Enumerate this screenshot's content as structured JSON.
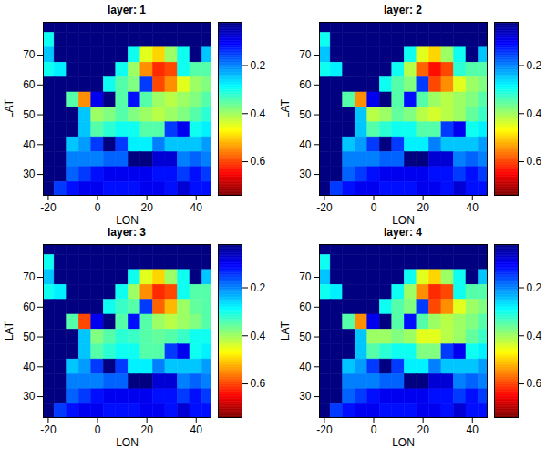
{
  "chart_data": [
    {
      "type": "heatmap",
      "title": "layer: 1",
      "x_label": "LON",
      "y_label": "LAT",
      "xlim": [
        -22,
        46
      ],
      "ylim": [
        23,
        81
      ],
      "xticks": [
        -20,
        0,
        20,
        40
      ],
      "yticks": [
        30,
        40,
        50,
        60,
        70
      ],
      "x": [
        -20,
        -15,
        -10,
        -5,
        0,
        5,
        10,
        15,
        20,
        25,
        30,
        35,
        40,
        45
      ],
      "y": [
        80,
        75,
        70,
        65,
        60,
        55,
        50,
        45,
        40,
        35,
        30,
        25
      ],
      "cells": [
        [
          0.02,
          0.02,
          0.02,
          0.02,
          0.02,
          0.02,
          0.02,
          0.02,
          0.02,
          0.02,
          0.02,
          0.02,
          0.02,
          0.02
        ],
        [
          0.3,
          0.02,
          0.02,
          0.02,
          0.02,
          0.02,
          0.02,
          0.02,
          0.02,
          0.02,
          0.02,
          0.02,
          0.02,
          0.02
        ],
        [
          0.25,
          0.02,
          0.02,
          0.02,
          0.02,
          0.02,
          0.02,
          0.3,
          0.45,
          0.5,
          0.4,
          0.3,
          0.02,
          0.25
        ],
        [
          0.3,
          0.28,
          0.02,
          0.02,
          0.02,
          0.02,
          0.3,
          0.4,
          0.55,
          0.62,
          0.6,
          0.3,
          0.35,
          0.35
        ],
        [
          0.02,
          0.02,
          0.02,
          0.02,
          0.02,
          0.3,
          0.35,
          0.38,
          0.15,
          0.6,
          0.55,
          0.45,
          0.4,
          0.38
        ],
        [
          0.02,
          0.02,
          0.35,
          0.55,
          0.1,
          0.02,
          0.35,
          0.12,
          0.35,
          0.4,
          0.42,
          0.4,
          0.38,
          0.35
        ],
        [
          0.02,
          0.02,
          0.02,
          0.25,
          0.4,
          0.38,
          0.35,
          0.38,
          0.4,
          0.42,
          0.4,
          0.38,
          0.35,
          0.32
        ],
        [
          0.02,
          0.02,
          0.02,
          0.25,
          0.35,
          0.32,
          0.3,
          0.3,
          0.35,
          0.35,
          0.15,
          0.1,
          0.3,
          0.28
        ],
        [
          0.02,
          0.02,
          0.25,
          0.22,
          0.15,
          0.02,
          0.15,
          0.28,
          0.28,
          0.2,
          0.25,
          0.25,
          0.25,
          0.22
        ],
        [
          0.02,
          0.02,
          0.2,
          0.2,
          0.2,
          0.18,
          0.18,
          0.02,
          0.02,
          0.08,
          0.08,
          0.2,
          0.18,
          0.2
        ],
        [
          0.02,
          0.02,
          0.18,
          0.15,
          0.12,
          0.1,
          0.1,
          0.1,
          0.1,
          0.12,
          0.12,
          0.15,
          0.12,
          0.15
        ],
        [
          0.02,
          0.15,
          0.12,
          0.1,
          0.1,
          0.12,
          0.12,
          0.12,
          0.1,
          0.1,
          0.12,
          0.08,
          0.12,
          0.12
        ]
      ],
      "colorbar_range": [
        0.02,
        0.74
      ],
      "colorbar_ticks": [
        0.2,
        0.4,
        0.6
      ]
    },
    {
      "type": "heatmap",
      "title": "layer: 2",
      "x_label": "LON",
      "y_label": "LAT",
      "xlim": [
        -22,
        46
      ],
      "ylim": [
        23,
        81
      ],
      "xticks": [
        -20,
        0,
        20,
        40
      ],
      "yticks": [
        30,
        40,
        50,
        60,
        70
      ],
      "x": [
        -20,
        -15,
        -10,
        -5,
        0,
        5,
        10,
        15,
        20,
        25,
        30,
        35,
        40,
        45
      ],
      "y": [
        80,
        75,
        70,
        65,
        60,
        55,
        50,
        45,
        40,
        35,
        30,
        25
      ],
      "cells": [
        [
          0.02,
          0.02,
          0.02,
          0.02,
          0.02,
          0.02,
          0.02,
          0.02,
          0.02,
          0.02,
          0.02,
          0.02,
          0.02,
          0.02
        ],
        [
          0.3,
          0.02,
          0.02,
          0.02,
          0.02,
          0.02,
          0.02,
          0.02,
          0.02,
          0.02,
          0.02,
          0.02,
          0.02,
          0.02
        ],
        [
          0.25,
          0.02,
          0.02,
          0.02,
          0.02,
          0.02,
          0.02,
          0.3,
          0.45,
          0.5,
          0.4,
          0.3,
          0.02,
          0.25
        ],
        [
          0.3,
          0.28,
          0.02,
          0.02,
          0.02,
          0.02,
          0.3,
          0.42,
          0.58,
          0.64,
          0.6,
          0.32,
          0.35,
          0.35
        ],
        [
          0.02,
          0.02,
          0.02,
          0.02,
          0.02,
          0.3,
          0.35,
          0.38,
          0.15,
          0.6,
          0.55,
          0.45,
          0.4,
          0.38
        ],
        [
          0.02,
          0.02,
          0.35,
          0.55,
          0.1,
          0.02,
          0.35,
          0.12,
          0.35,
          0.4,
          0.42,
          0.4,
          0.38,
          0.35
        ],
        [
          0.02,
          0.02,
          0.02,
          0.25,
          0.42,
          0.4,
          0.36,
          0.38,
          0.42,
          0.44,
          0.42,
          0.4,
          0.36,
          0.33
        ],
        [
          0.02,
          0.02,
          0.02,
          0.25,
          0.35,
          0.32,
          0.3,
          0.3,
          0.35,
          0.35,
          0.15,
          0.1,
          0.3,
          0.28
        ],
        [
          0.02,
          0.02,
          0.25,
          0.22,
          0.15,
          0.02,
          0.15,
          0.28,
          0.28,
          0.2,
          0.25,
          0.25,
          0.25,
          0.22
        ],
        [
          0.02,
          0.02,
          0.2,
          0.2,
          0.2,
          0.18,
          0.18,
          0.02,
          0.02,
          0.08,
          0.08,
          0.2,
          0.18,
          0.2
        ],
        [
          0.02,
          0.02,
          0.18,
          0.15,
          0.12,
          0.1,
          0.1,
          0.1,
          0.1,
          0.12,
          0.12,
          0.15,
          0.12,
          0.15
        ],
        [
          0.02,
          0.15,
          0.12,
          0.1,
          0.1,
          0.12,
          0.12,
          0.12,
          0.1,
          0.1,
          0.12,
          0.08,
          0.12,
          0.12
        ]
      ],
      "colorbar_range": [
        0.02,
        0.74
      ],
      "colorbar_ticks": [
        0.2,
        0.4,
        0.6
      ]
    },
    {
      "type": "heatmap",
      "title": "layer: 3",
      "x_label": "LON",
      "y_label": "LAT",
      "xlim": [
        -22,
        46
      ],
      "ylim": [
        23,
        81
      ],
      "xticks": [
        -20,
        0,
        20,
        40
      ],
      "yticks": [
        30,
        40,
        50,
        60,
        70
      ],
      "x": [
        -20,
        -15,
        -10,
        -5,
        0,
        5,
        10,
        15,
        20,
        25,
        30,
        35,
        40,
        45
      ],
      "y": [
        80,
        75,
        70,
        65,
        60,
        55,
        50,
        45,
        40,
        35,
        30,
        25
      ],
      "cells": [
        [
          0.02,
          0.02,
          0.02,
          0.02,
          0.02,
          0.02,
          0.02,
          0.02,
          0.02,
          0.02,
          0.02,
          0.02,
          0.02,
          0.02
        ],
        [
          0.3,
          0.02,
          0.02,
          0.02,
          0.02,
          0.02,
          0.02,
          0.02,
          0.02,
          0.02,
          0.02,
          0.02,
          0.02,
          0.02
        ],
        [
          0.25,
          0.02,
          0.02,
          0.02,
          0.02,
          0.02,
          0.02,
          0.3,
          0.45,
          0.5,
          0.4,
          0.3,
          0.02,
          0.25
        ],
        [
          0.3,
          0.28,
          0.02,
          0.02,
          0.02,
          0.02,
          0.3,
          0.4,
          0.55,
          0.62,
          0.6,
          0.3,
          0.35,
          0.35
        ],
        [
          0.02,
          0.02,
          0.02,
          0.02,
          0.02,
          0.3,
          0.33,
          0.35,
          0.15,
          0.58,
          0.52,
          0.4,
          0.36,
          0.35
        ],
        [
          0.02,
          0.02,
          0.35,
          0.6,
          0.1,
          0.02,
          0.35,
          0.12,
          0.35,
          0.4,
          0.42,
          0.4,
          0.38,
          0.35
        ],
        [
          0.02,
          0.02,
          0.02,
          0.25,
          0.38,
          0.35,
          0.32,
          0.33,
          0.35,
          0.36,
          0.35,
          0.33,
          0.3,
          0.3
        ],
        [
          0.02,
          0.02,
          0.02,
          0.25,
          0.35,
          0.32,
          0.3,
          0.3,
          0.35,
          0.35,
          0.15,
          0.1,
          0.3,
          0.28
        ],
        [
          0.02,
          0.02,
          0.25,
          0.22,
          0.15,
          0.02,
          0.15,
          0.28,
          0.28,
          0.2,
          0.25,
          0.25,
          0.25,
          0.22
        ],
        [
          0.02,
          0.02,
          0.2,
          0.2,
          0.2,
          0.18,
          0.18,
          0.02,
          0.02,
          0.08,
          0.08,
          0.2,
          0.18,
          0.2
        ],
        [
          0.02,
          0.02,
          0.18,
          0.15,
          0.12,
          0.1,
          0.1,
          0.1,
          0.1,
          0.12,
          0.12,
          0.15,
          0.12,
          0.15
        ],
        [
          0.02,
          0.15,
          0.12,
          0.1,
          0.1,
          0.12,
          0.12,
          0.12,
          0.1,
          0.1,
          0.12,
          0.08,
          0.12,
          0.12
        ]
      ],
      "colorbar_range": [
        0.02,
        0.74
      ],
      "colorbar_ticks": [
        0.2,
        0.4,
        0.6
      ]
    },
    {
      "type": "heatmap",
      "title": "layer: 4",
      "x_label": "LON",
      "y_label": "LAT",
      "xlim": [
        -22,
        46
      ],
      "ylim": [
        23,
        81
      ],
      "xticks": [
        -20,
        0,
        20,
        40
      ],
      "yticks": [
        30,
        40,
        50,
        60,
        70
      ],
      "x": [
        -20,
        -15,
        -10,
        -5,
        0,
        5,
        10,
        15,
        20,
        25,
        30,
        35,
        40,
        45
      ],
      "y": [
        80,
        75,
        70,
        65,
        60,
        55,
        50,
        45,
        40,
        35,
        30,
        25
      ],
      "cells": [
        [
          0.02,
          0.02,
          0.02,
          0.02,
          0.02,
          0.02,
          0.02,
          0.02,
          0.02,
          0.02,
          0.02,
          0.02,
          0.02,
          0.02
        ],
        [
          0.3,
          0.02,
          0.02,
          0.02,
          0.02,
          0.02,
          0.02,
          0.02,
          0.02,
          0.02,
          0.02,
          0.02,
          0.02,
          0.02
        ],
        [
          0.25,
          0.02,
          0.02,
          0.02,
          0.02,
          0.02,
          0.02,
          0.3,
          0.45,
          0.5,
          0.4,
          0.3,
          0.02,
          0.25
        ],
        [
          0.3,
          0.28,
          0.02,
          0.02,
          0.02,
          0.02,
          0.3,
          0.4,
          0.55,
          0.62,
          0.6,
          0.3,
          0.35,
          0.35
        ],
        [
          0.02,
          0.02,
          0.02,
          0.02,
          0.02,
          0.3,
          0.35,
          0.38,
          0.15,
          0.6,
          0.55,
          0.45,
          0.4,
          0.38
        ],
        [
          0.02,
          0.02,
          0.35,
          0.55,
          0.1,
          0.02,
          0.35,
          0.12,
          0.35,
          0.4,
          0.42,
          0.4,
          0.38,
          0.35
        ],
        [
          0.02,
          0.02,
          0.02,
          0.25,
          0.4,
          0.4,
          0.38,
          0.4,
          0.45,
          0.45,
          0.42,
          0.4,
          0.36,
          0.33
        ],
        [
          0.02,
          0.02,
          0.02,
          0.25,
          0.35,
          0.32,
          0.3,
          0.3,
          0.38,
          0.38,
          0.15,
          0.1,
          0.3,
          0.28
        ],
        [
          0.02,
          0.02,
          0.25,
          0.22,
          0.15,
          0.02,
          0.15,
          0.28,
          0.28,
          0.2,
          0.25,
          0.25,
          0.25,
          0.22
        ],
        [
          0.02,
          0.02,
          0.2,
          0.2,
          0.2,
          0.18,
          0.18,
          0.02,
          0.02,
          0.08,
          0.08,
          0.2,
          0.18,
          0.2
        ],
        [
          0.02,
          0.02,
          0.18,
          0.15,
          0.12,
          0.1,
          0.1,
          0.1,
          0.1,
          0.12,
          0.12,
          0.15,
          0.12,
          0.15
        ],
        [
          0.02,
          0.15,
          0.12,
          0.1,
          0.1,
          0.12,
          0.12,
          0.12,
          0.1,
          0.1,
          0.12,
          0.08,
          0.12,
          0.12
        ]
      ],
      "colorbar_range": [
        0.02,
        0.74
      ],
      "colorbar_ticks": [
        0.2,
        0.4,
        0.6
      ]
    }
  ]
}
